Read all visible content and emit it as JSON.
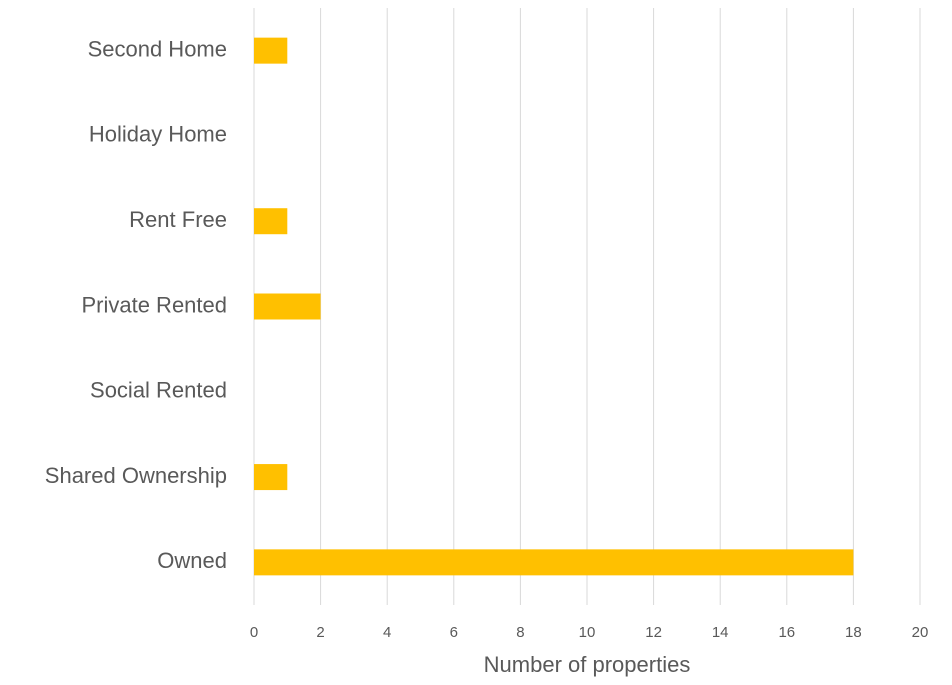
{
  "chart_data": {
    "type": "hbar",
    "categories": [
      "Second Home",
      "Holiday Home",
      "Rent Free",
      "Private Rented",
      "Social Rented",
      "Shared Ownership",
      "Owned"
    ],
    "values": [
      1,
      0,
      1,
      2,
      0,
      1,
      18
    ],
    "color": "#ffc000",
    "x_label": "Number of properties",
    "xlim": [
      0,
      20
    ],
    "xticks": [
      0,
      2,
      4,
      6,
      8,
      10,
      12,
      14,
      16,
      18,
      20
    ],
    "grid": true
  }
}
